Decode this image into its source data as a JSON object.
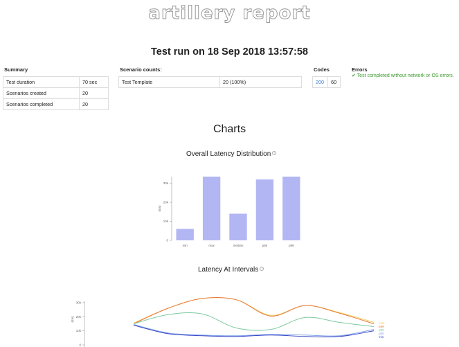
{
  "header": {
    "logo_text": "artillery report",
    "title": "Test run on 18 Sep 2018 13:57:58"
  },
  "summary": {
    "heading": "Summary",
    "rows": [
      {
        "label": "Test duration",
        "value": "70 sec"
      },
      {
        "label": "Scenarios created",
        "value": "20"
      },
      {
        "label": "Scenarios completed",
        "value": "20"
      }
    ]
  },
  "scenario_counts": {
    "heading": "Scenario counts:",
    "rows": [
      {
        "label": "Test Template",
        "value": "20 (100%)"
      }
    ]
  },
  "codes": {
    "heading": "Codes",
    "code": "200",
    "count": "60"
  },
  "errors": {
    "heading": "Errors",
    "message": "✔ Test completed without network or OS errors."
  },
  "charts_heading": "Charts",
  "chart_data": [
    {
      "type": "bar",
      "title": "Overall Latency Distribution",
      "ylabel": "(ms)",
      "categories": [
        "min",
        "max",
        "median",
        "p95",
        "p99"
      ],
      "values": [
        6000,
        33500,
        14000,
        32000,
        33500
      ],
      "ylim": [
        0,
        33500
      ],
      "yticks": [
        0,
        10000,
        20000,
        30000
      ],
      "ytick_labels": [
        "0",
        "10k",
        "20k",
        "30k"
      ],
      "color": "#b2b6f3"
    },
    {
      "type": "line",
      "title": "Latency At Intervals",
      "ylabel": "(ms)",
      "x": [
        0,
        1,
        2,
        3,
        4,
        5,
        6,
        7
      ],
      "ylim": [
        0,
        30000
      ],
      "yticks": [
        0,
        10000,
        20000,
        30000
      ],
      "ytick_labels": [
        "0",
        "10k",
        "20k",
        "30k"
      ],
      "series": [
        {
          "name": "max",
          "color": "#f0d060",
          "values": [
            15500,
            26000,
            33000,
            32000,
            21000,
            28000,
            23000,
            16000
          ]
        },
        {
          "name": "p99",
          "color": "#e8783a",
          "values": [
            15000,
            26000,
            33000,
            32000,
            20500,
            28000,
            22500,
            15000
          ]
        },
        {
          "name": "p95",
          "color": "#7ccaa0",
          "values": [
            15000,
            21500,
            22000,
            12000,
            11000,
            19500,
            16000,
            13000
          ]
        },
        {
          "name": "p50",
          "color": "#7fa3e8",
          "values": [
            14500,
            8500,
            7000,
            6500,
            7500,
            7000,
            6500,
            11000
          ]
        },
        {
          "name": "min",
          "color": "#3a46c8",
          "values": [
            14000,
            8000,
            6500,
            6000,
            7000,
            6000,
            6000,
            10000
          ]
        }
      ]
    }
  ]
}
